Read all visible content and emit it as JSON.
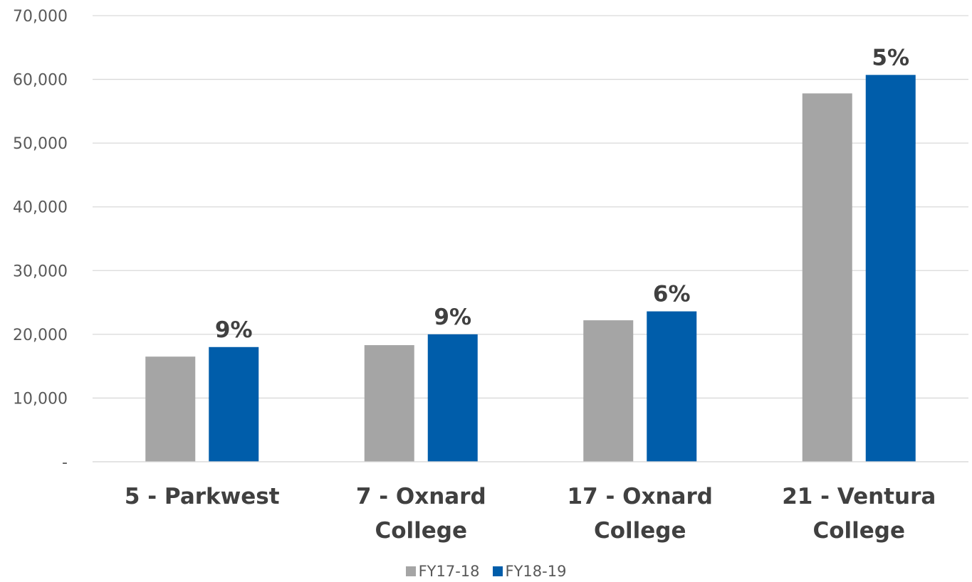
{
  "chart_data": {
    "type": "bar",
    "categories": [
      [
        "5 - Parkwest"
      ],
      [
        "7 - Oxnard",
        "College"
      ],
      [
        "17 - Oxnard",
        "College"
      ],
      [
        "21 - Ventura",
        "College"
      ]
    ],
    "series": [
      {
        "name": "FY17-18",
        "color": "#A5A5A5",
        "values": [
          16500,
          18300,
          22200,
          57800
        ]
      },
      {
        "name": "FY18-19",
        "color": "#005DAA",
        "values": [
          18000,
          20000,
          23600,
          60700
        ]
      }
    ],
    "data_labels": [
      "9%",
      "9%",
      "6%",
      "5%"
    ],
    "yticks": [
      0,
      10000,
      20000,
      30000,
      40000,
      50000,
      60000,
      70000
    ],
    "ytick_labels": [
      "-",
      "10,000",
      "20,000",
      "30,000",
      "40,000",
      "50,000",
      "60,000",
      "70,000"
    ],
    "ylim": [
      0,
      70000
    ],
    "grid": true,
    "legend_position": "bottom"
  }
}
